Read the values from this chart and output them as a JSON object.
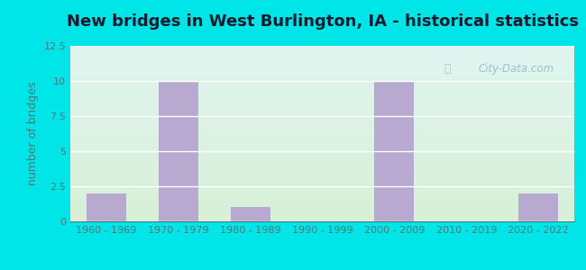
{
  "title": "New bridges in West Burlington, IA - historical statistics",
  "ylabel": "number of bridges",
  "categories": [
    "1960 - 1969",
    "1970 - 1979",
    "1980 - 1989",
    "1990 - 1999",
    "2000 - 2009",
    "2010 - 2019",
    "2020 - 2022"
  ],
  "values": [
    2,
    10,
    1,
    0,
    10,
    0,
    2
  ],
  "bar_color": "#b8a9d0",
  "ylim": [
    0,
    12.5
  ],
  "yticks": [
    0,
    2.5,
    5.0,
    7.5,
    10.0,
    12.5
  ],
  "ytick_labels": [
    "0",
    "2.5",
    "5",
    "7.5",
    "10",
    "12.5"
  ],
  "background_outer": "#00e5e8",
  "title_fontsize": 13,
  "axis_label_fontsize": 9,
  "tick_fontsize": 8,
  "tick_color": "#4a7a7a",
  "watermark_text": "City-Data.com"
}
